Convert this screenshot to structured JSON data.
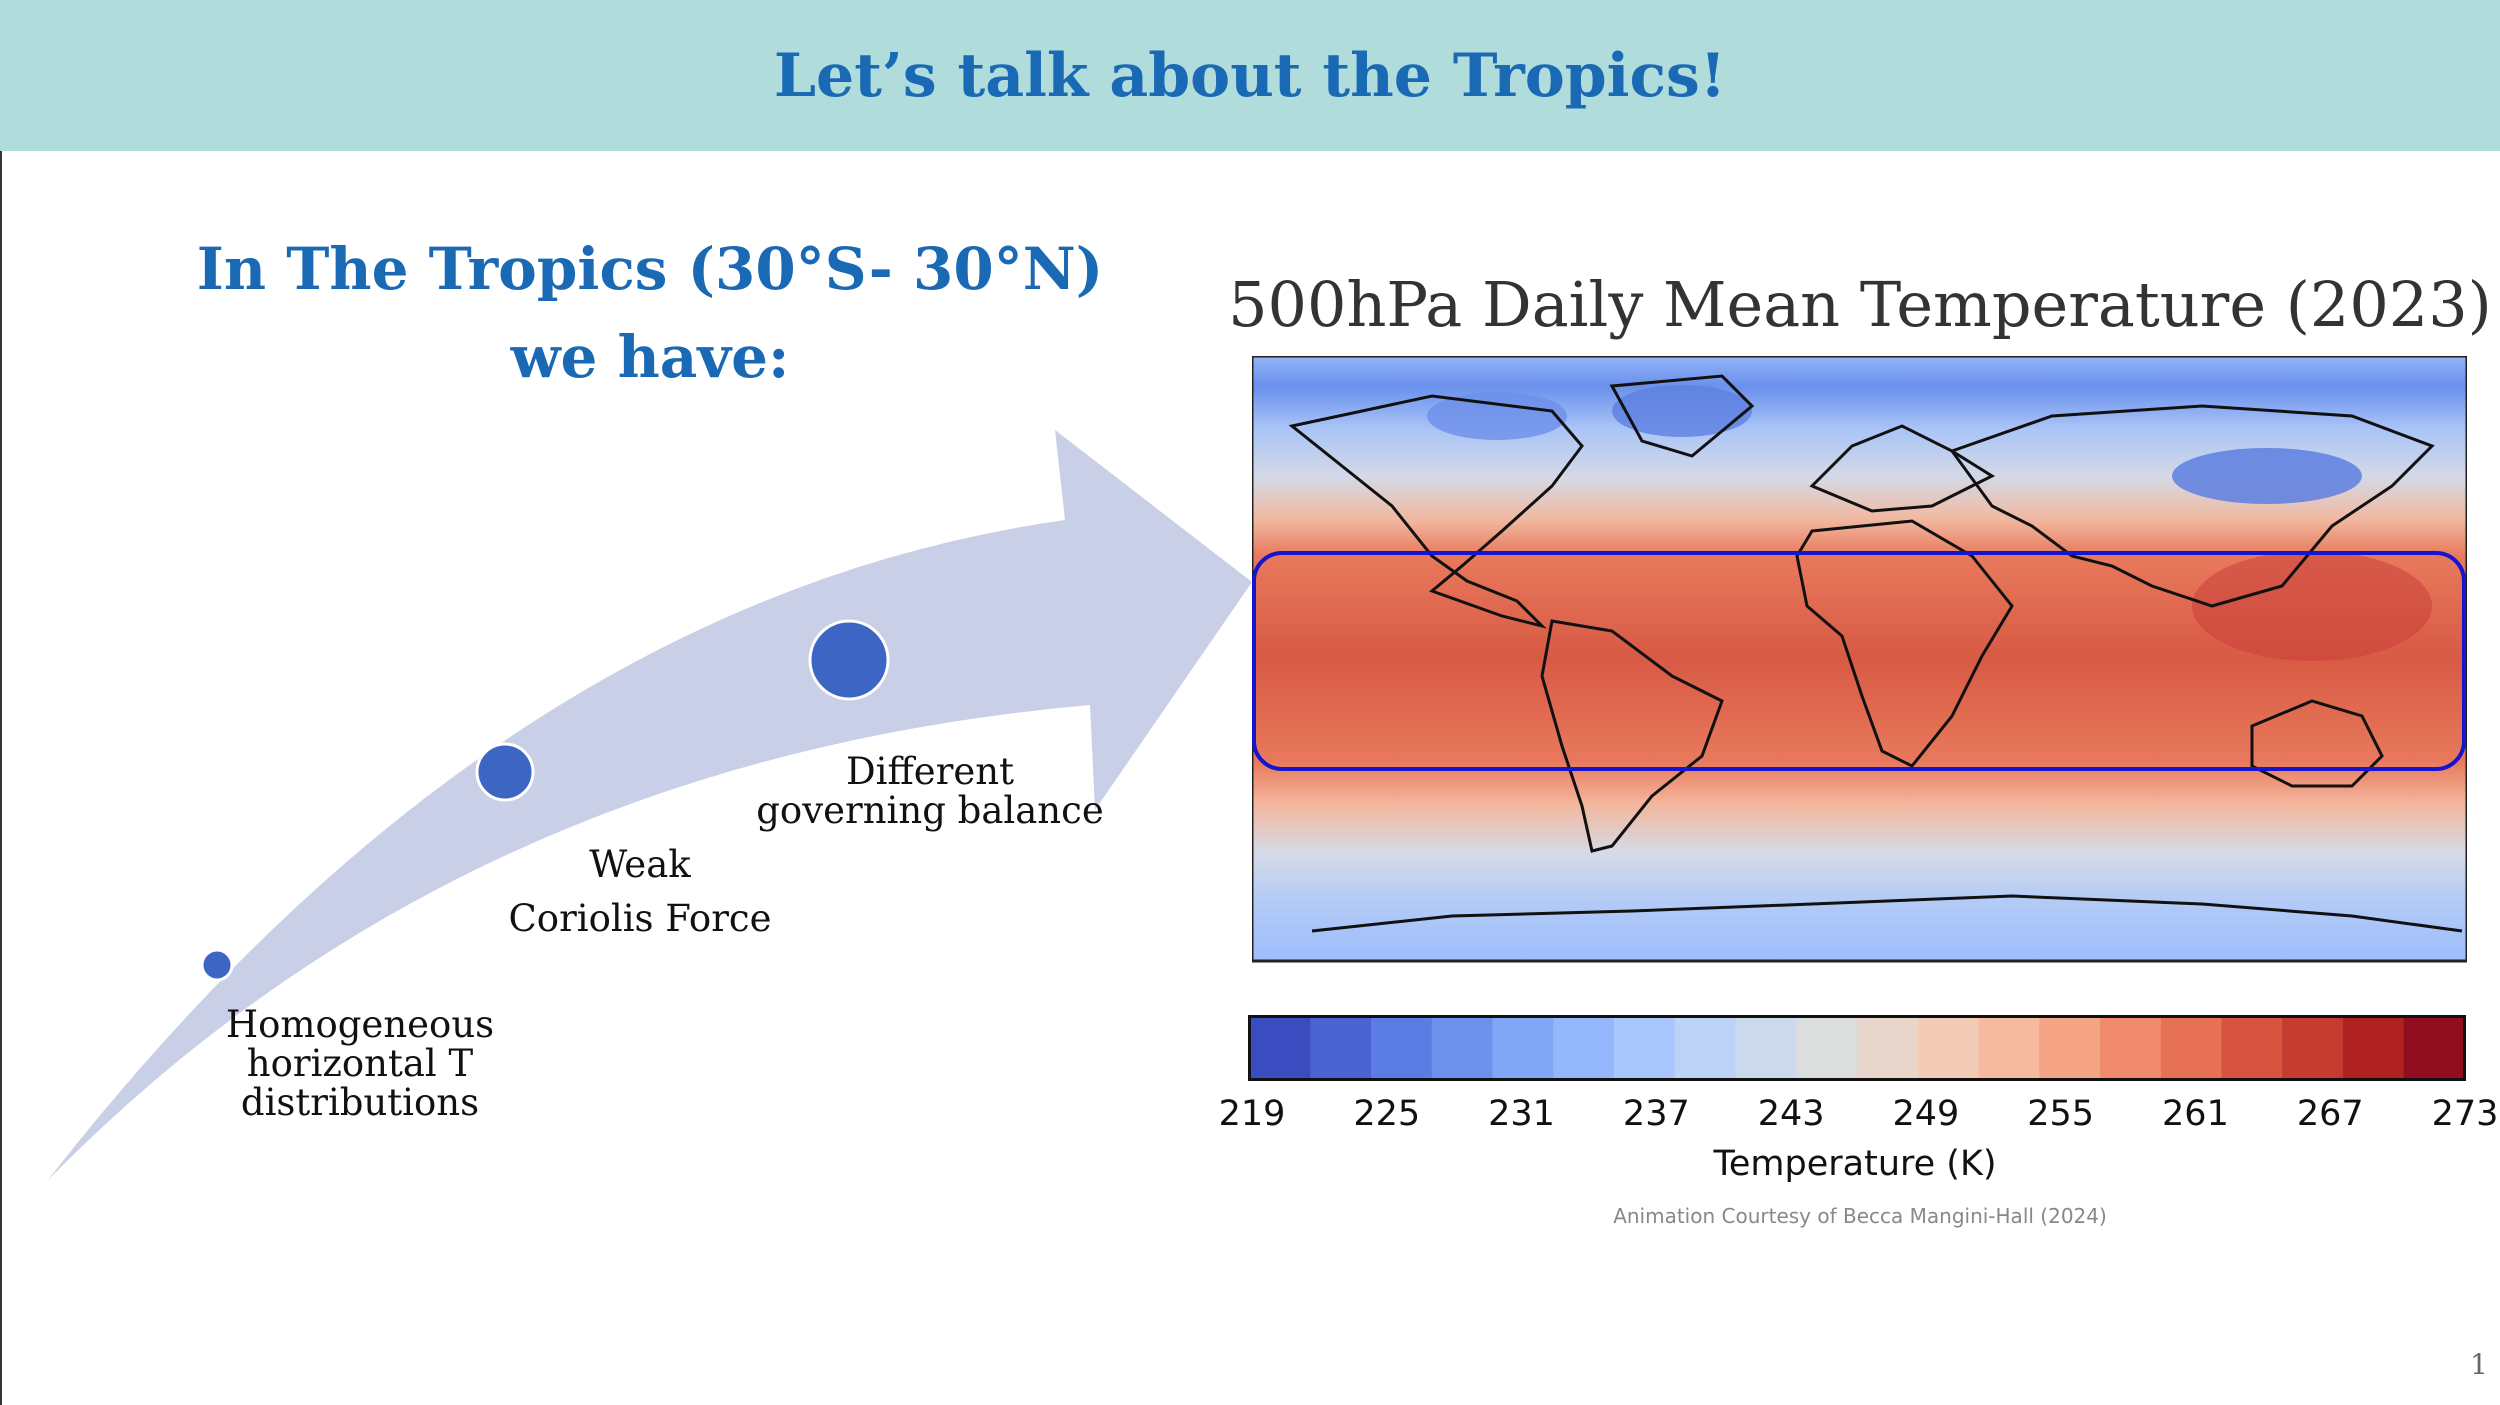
{
  "header": {
    "title": "Let’s talk about the Tropics!"
  },
  "intro": {
    "line1": "In The Tropics (30°S- 30°N)",
    "line2": "we have:"
  },
  "steps": [
    {
      "label_line1": "Homogeneous",
      "label_line2": "horizontal T",
      "label_line3": "distributions"
    },
    {
      "label_line1": "Weak",
      "label_line2": "Coriolis Force"
    },
    {
      "label_line1": "Different",
      "label_line2": "governing balance"
    }
  ],
  "map": {
    "title": "500hPa Daily Mean Temperature (2023)"
  },
  "colorbar": {
    "ticks": [
      "219",
      "225",
      "231",
      "237",
      "243",
      "249",
      "255",
      "261",
      "267",
      "273"
    ],
    "label": "Temperature (K)",
    "colors": [
      "#3b4cc0",
      "#4a63d3",
      "#5b7ce2",
      "#6d92ee",
      "#82a6f6",
      "#95b7fc",
      "#a9c6fd",
      "#bcd2f7",
      "#cdd9ec",
      "#dcdddd",
      "#e8d6cc",
      "#f2cbb7",
      "#f5baa0",
      "#f5a486",
      "#f08c6d",
      "#e67155",
      "#d75440",
      "#c43c2f",
      "#b02122",
      "#8f0d1f"
    ]
  },
  "credit": "Animation Courtesy of Becca Mangini-Hall (2024)",
  "page_number": "1"
}
